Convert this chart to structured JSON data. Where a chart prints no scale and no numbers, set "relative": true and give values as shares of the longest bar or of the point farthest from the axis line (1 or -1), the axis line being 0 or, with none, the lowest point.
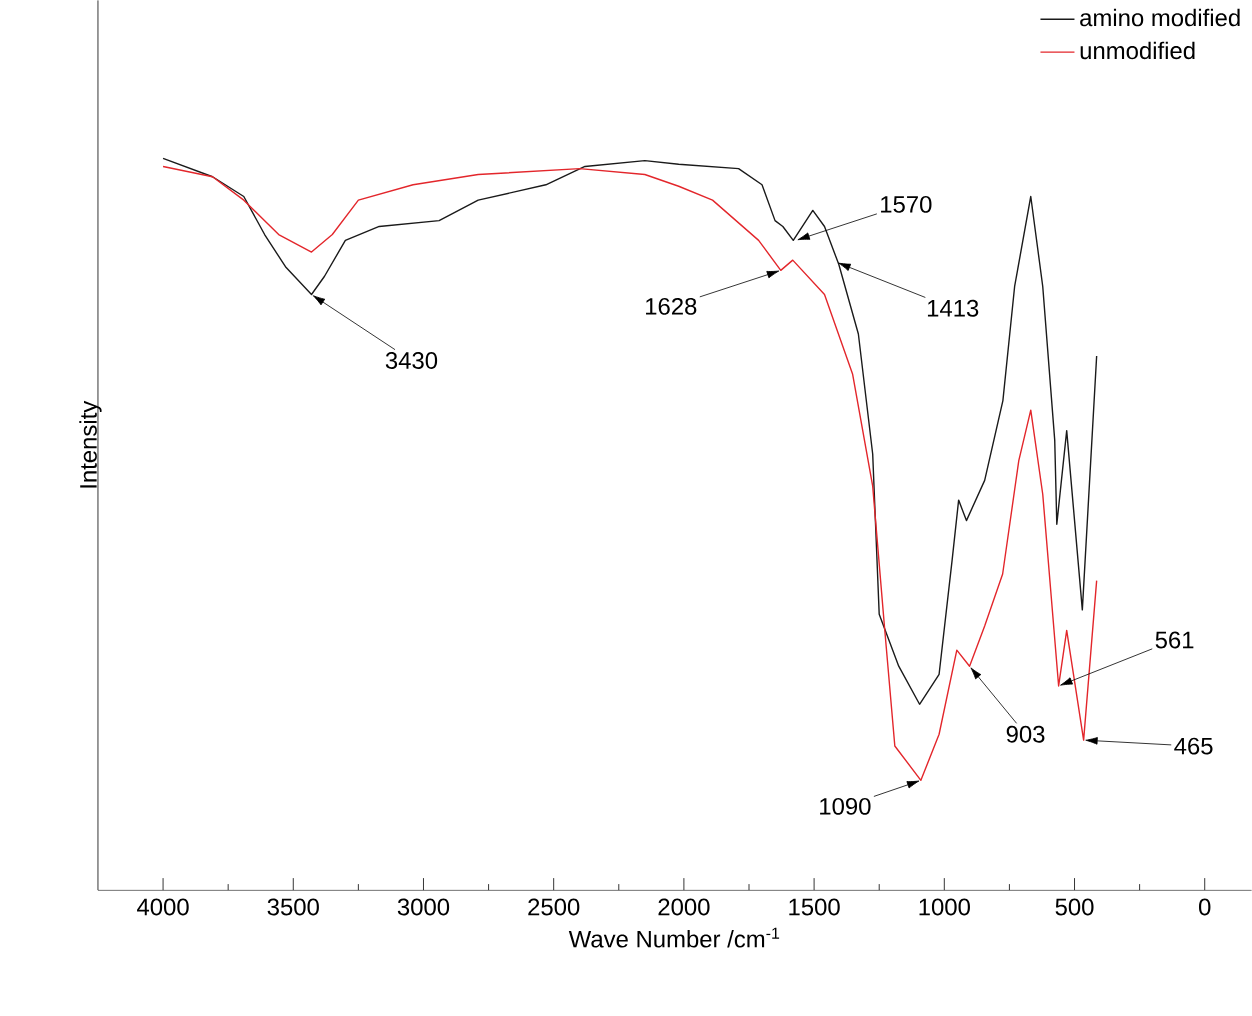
{
  "chart_data": {
    "type": "line",
    "xlabel": "Wave Number  /cm$^{-1}$",
    "ylabel": "Intensity",
    "relative": true,
    "xlim": [
      4250,
      -180
    ],
    "xticks": [
      4000,
      3500,
      3000,
      2500,
      2000,
      1500,
      1000,
      500,
      0
    ],
    "legend": "top right",
    "series": [
      {
        "name": "amino modified",
        "color": "#1a1a1a",
        "x": [
          4000,
          3810,
          3690,
          3610,
          3530,
          3430,
          3380,
          3300,
          3170,
          2940,
          2790,
          2530,
          2380,
          2150,
          2020,
          1790,
          1700,
          1650,
          1620,
          1580,
          1505,
          1460,
          1405,
          1330,
          1275,
          1250,
          1175,
          1095,
          1020,
          970,
          945,
          915,
          845,
          775,
          730,
          668,
          622,
          576,
          568,
          530,
          470,
          415
        ],
        "values": [
          1.0,
          0.975,
          0.948,
          0.896,
          0.852,
          0.814,
          0.839,
          0.888,
          0.907,
          0.915,
          0.943,
          0.964,
          0.989,
          0.997,
          0.992,
          0.986,
          0.964,
          0.915,
          0.907,
          0.888,
          0.929,
          0.907,
          0.855,
          0.76,
          0.596,
          0.377,
          0.306,
          0.254,
          0.295,
          0.451,
          0.533,
          0.505,
          0.56,
          0.669,
          0.825,
          0.948,
          0.825,
          0.615,
          0.5,
          0.628,
          0.383,
          0.73
        ]
      },
      {
        "name": "unmodified",
        "color": "#e3262b",
        "x": [
          4000,
          3810,
          3690,
          3556,
          3430,
          3350,
          3250,
          3040,
          2790,
          2400,
          2150,
          2020,
          1890,
          1713,
          1628,
          1582,
          1460,
          1352,
          1275,
          1230,
          1190,
          1090,
          1020,
          952,
          903,
          845,
          776,
          714,
          668,
          622,
          561,
          530,
          465,
          415
        ],
        "values": [
          0.989,
          0.975,
          0.943,
          0.896,
          0.872,
          0.896,
          0.943,
          0.964,
          0.978,
          0.986,
          0.978,
          0.962,
          0.943,
          0.888,
          0.847,
          0.861,
          0.814,
          0.705,
          0.552,
          0.361,
          0.197,
          0.15,
          0.213,
          0.328,
          0.306,
          0.361,
          0.432,
          0.587,
          0.656,
          0.541,
          0.279,
          0.355,
          0.205,
          0.423
        ]
      }
    ],
    "annotations": [
      {
        "text": "3430",
        "x": 3430,
        "y": 0.814
      },
      {
        "text": "1570",
        "x": 1570,
        "y": 0.888
      },
      {
        "text": "1628",
        "x": 1628,
        "y": 0.847
      },
      {
        "text": "1413",
        "x": 1413,
        "y": 0.858
      },
      {
        "text": "1090",
        "x": 1090,
        "y": 0.15
      },
      {
        "text": "903",
        "x": 903,
        "y": 0.306
      },
      {
        "text": "561",
        "x": 561,
        "y": 0.279
      },
      {
        "text": "465",
        "x": 465,
        "y": 0.205
      }
    ]
  }
}
